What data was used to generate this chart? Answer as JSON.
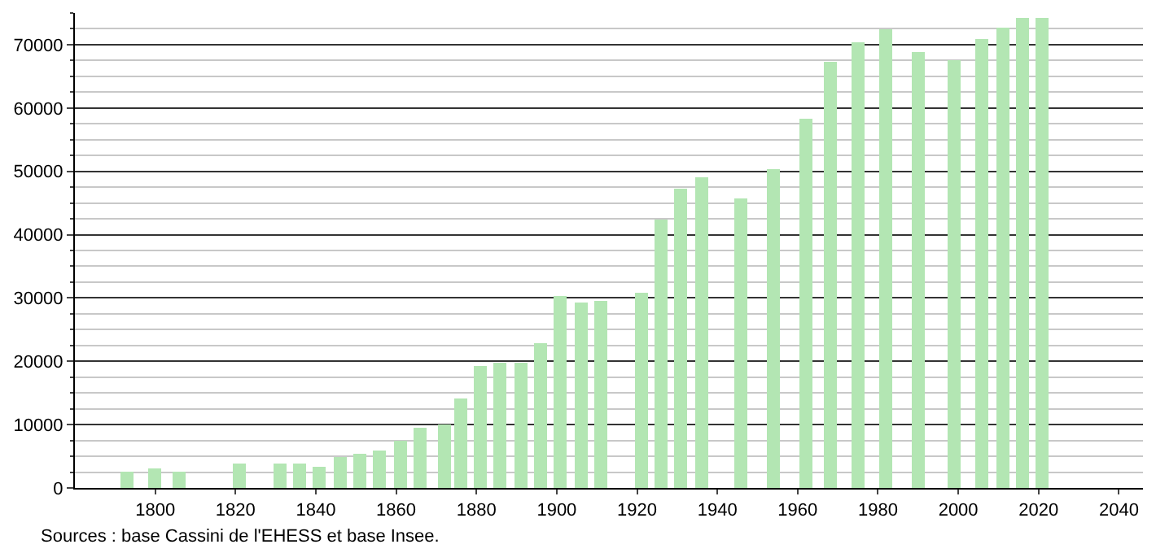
{
  "chart_data": {
    "type": "bar",
    "x": [
      1793,
      1800,
      1806,
      1821,
      1831,
      1836,
      1841,
      1846,
      1851,
      1856,
      1861,
      1866,
      1872,
      1876,
      1881,
      1886,
      1891,
      1896,
      1901,
      1906,
      1911,
      1921,
      1926,
      1931,
      1936,
      1946,
      1954,
      1962,
      1968,
      1975,
      1982,
      1990,
      1999,
      2006,
      2011,
      2016,
      2021
    ],
    "values": [
      2600,
      3000,
      2600,
      3900,
      3900,
      3900,
      3400,
      4800,
      5500,
      5800,
      7400,
      9600,
      10100,
      14000,
      19200,
      19900,
      19900,
      22800,
      30300,
      29300,
      29600,
      30800,
      42500,
      47200,
      49000,
      45700,
      50400,
      58200,
      67200,
      70500,
      72500,
      68800,
      67600,
      70800,
      72600,
      74200,
      74200
    ],
    "color": "#b3e6b3",
    "xlim": [
      1780,
      2046
    ],
    "xticks": [
      1800,
      1820,
      1840,
      1860,
      1880,
      1900,
      1920,
      1940,
      1960,
      1980,
      2000,
      2020,
      2040
    ],
    "ylim": [
      0,
      75000
    ],
    "yticks": [
      0,
      10000,
      20000,
      30000,
      40000,
      50000,
      60000,
      70000
    ],
    "grid": "y",
    "annotations": [
      "Sources : base Cassini de l'EHESS et base Insee."
    ]
  }
}
